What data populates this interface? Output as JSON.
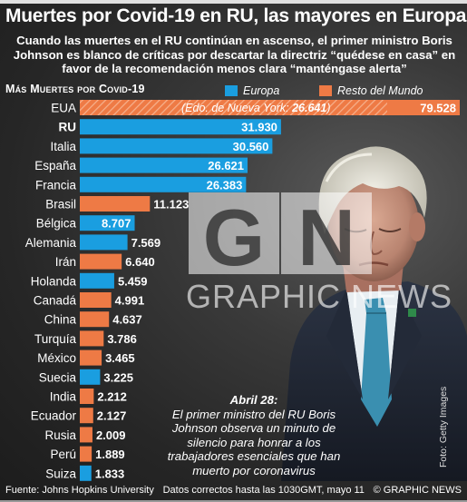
{
  "headline": "Muertes por Covid-19 en RU, las mayores en Europa",
  "deck": "Cuando las muertes en el RU continúan en ascenso, el primer ministro Boris Johnson es blanco de críticas por descartar la directriz “quédese en casa” en favor de la recomendación menos clara “manténgase alerta”",
  "chart_heading": "Más Muertes por Covid-19",
  "legend": {
    "europe_label": "Europa",
    "rest_label": "Resto del Mundo"
  },
  "colors": {
    "europe": "#1a9ee0",
    "rest": "#ee7a45"
  },
  "chart_data": {
    "type": "bar",
    "orientation": "horizontal",
    "title": "Más Muertes por Covid-19",
    "categories": [
      "EUA",
      "RU",
      "Italia",
      "España",
      "Francia",
      "Brasil",
      "Bélgica",
      "Alemania",
      "Irán",
      "Holanda",
      "Canadá",
      "China",
      "Turquía",
      "México",
      "Suecia",
      "India",
      "Ecuador",
      "Rusia",
      "Perú",
      "Suiza"
    ],
    "values": [
      79528,
      31930,
      30560,
      26621,
      26383,
      11123,
      8707,
      7569,
      6640,
      5459,
      4991,
      4637,
      3786,
      3465,
      3225,
      2212,
      2127,
      2009,
      1889,
      1833
    ],
    "value_labels": [
      "79.528",
      "31.930",
      "30.560",
      "26.621",
      "26.383",
      "11.123",
      "8.707",
      "7.569",
      "6.640",
      "5.459",
      "4.991",
      "4.637",
      "3.786",
      "3.465",
      "3.225",
      "2.212",
      "2.127",
      "2.009",
      "1.889",
      "1.833"
    ],
    "group": [
      "rest",
      "europe",
      "europe",
      "europe",
      "europe",
      "rest",
      "europe",
      "europe",
      "rest",
      "europe",
      "rest",
      "rest",
      "rest",
      "rest",
      "europe",
      "rest",
      "rest",
      "rest",
      "rest",
      "europe"
    ],
    "bold_categories": [
      "RU"
    ],
    "annotation": {
      "category": "EUA",
      "prefix": "(Edo. de Nueva York: ",
      "value": "26.641",
      "suffix": ")"
    },
    "series": [
      {
        "name": "Europa"
      },
      {
        "name": "Resto del Mundo"
      }
    ]
  },
  "watermark": "GRAPHIC NEWS",
  "watermark_logo": "GN",
  "caption": {
    "date": "Abril 28:",
    "text": "El primer ministro del RU Boris Johnson observa un minuto de silencio para honrar a los trabajadores esenciales que han muerto por coronavirus"
  },
  "photo_credit": "Foto: Getty Images",
  "footer": {
    "source": "Fuente: Johns Hopkins University",
    "note": "Datos correctos hasta las 1030GMT, mayo 11",
    "copyright": "© GRAPHIC NEWS"
  }
}
